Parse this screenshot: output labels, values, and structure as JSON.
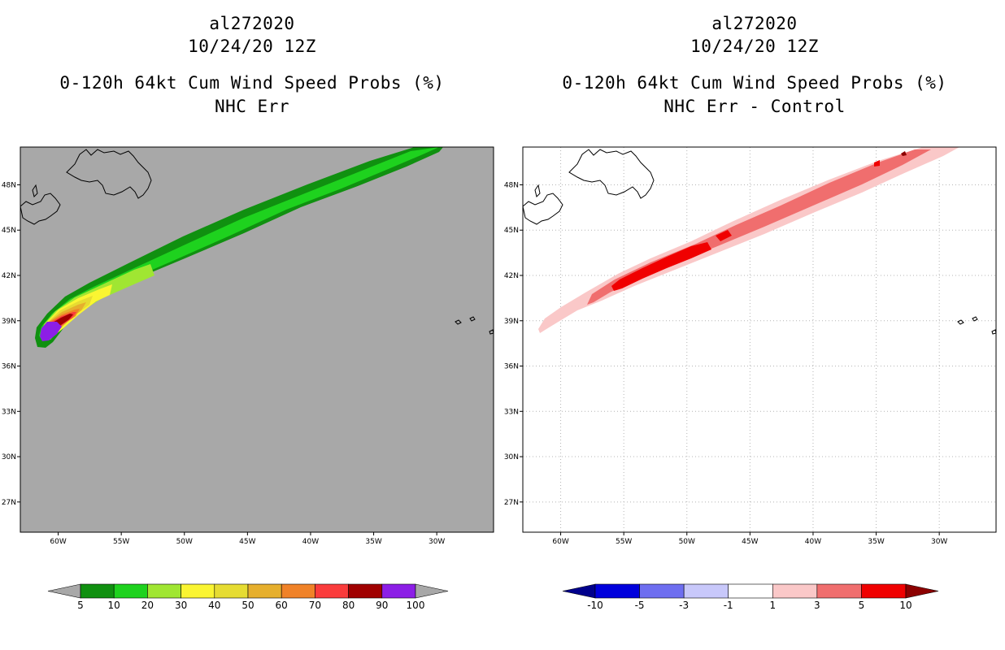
{
  "left_panel": {
    "storm_id": "al272020",
    "datetime": "10/24/20 12Z",
    "product": "0-120h 64kt Cum Wind Speed Probs (%)",
    "variant": "NHC Err",
    "background_color": "#a8a8a8",
    "colorbar": {
      "ticks": [
        "5",
        "10",
        "20",
        "30",
        "40",
        "50",
        "60",
        "70",
        "80",
        "90",
        "100"
      ],
      "colors": [
        "#109010",
        "#1ed21e",
        "#a0e632",
        "#faf532",
        "#e6dc32",
        "#e6af2d",
        "#f08228",
        "#fa3c3c",
        "#a00000",
        "#8c1ee6"
      ],
      "extend_low_color": "#a8a8a8",
      "extend_high_color": "#a8a8a8"
    }
  },
  "right_panel": {
    "storm_id": "al272020",
    "datetime": "10/24/20 12Z",
    "product": "0-120h 64kt Cum Wind Speed Probs (%)",
    "variant": "NHC Err - Control",
    "background_color": "#ffffff",
    "colorbar": {
      "ticks": [
        "-10",
        "-5",
        "-3",
        "-1",
        "1",
        "3",
        "5",
        "10"
      ],
      "colors": [
        "#0000dc",
        "#6e6ef0",
        "#c8c8fa",
        "#ffffff",
        "#fac8c8",
        "#f06e6e",
        "#f00000"
      ],
      "extend_low_color": "#00008c",
      "extend_high_color": "#8c0000"
    }
  },
  "axes": {
    "lat_labels": [
      "48N",
      "45N",
      "42N",
      "39N",
      "36N",
      "33N",
      "30N",
      "27N"
    ],
    "lat_values": [
      48,
      45,
      42,
      39,
      36,
      33,
      30,
      27
    ],
    "lon_labels": [
      "60W",
      "55W",
      "50W",
      "45W",
      "40W",
      "35W",
      "30W"
    ],
    "lon_values": [
      -60,
      -55,
      -50,
      -45,
      -40,
      -35,
      -30
    ],
    "lat_range": [
      25,
      50.5
    ],
    "lon_range": [
      -63,
      -25.5
    ]
  }
}
